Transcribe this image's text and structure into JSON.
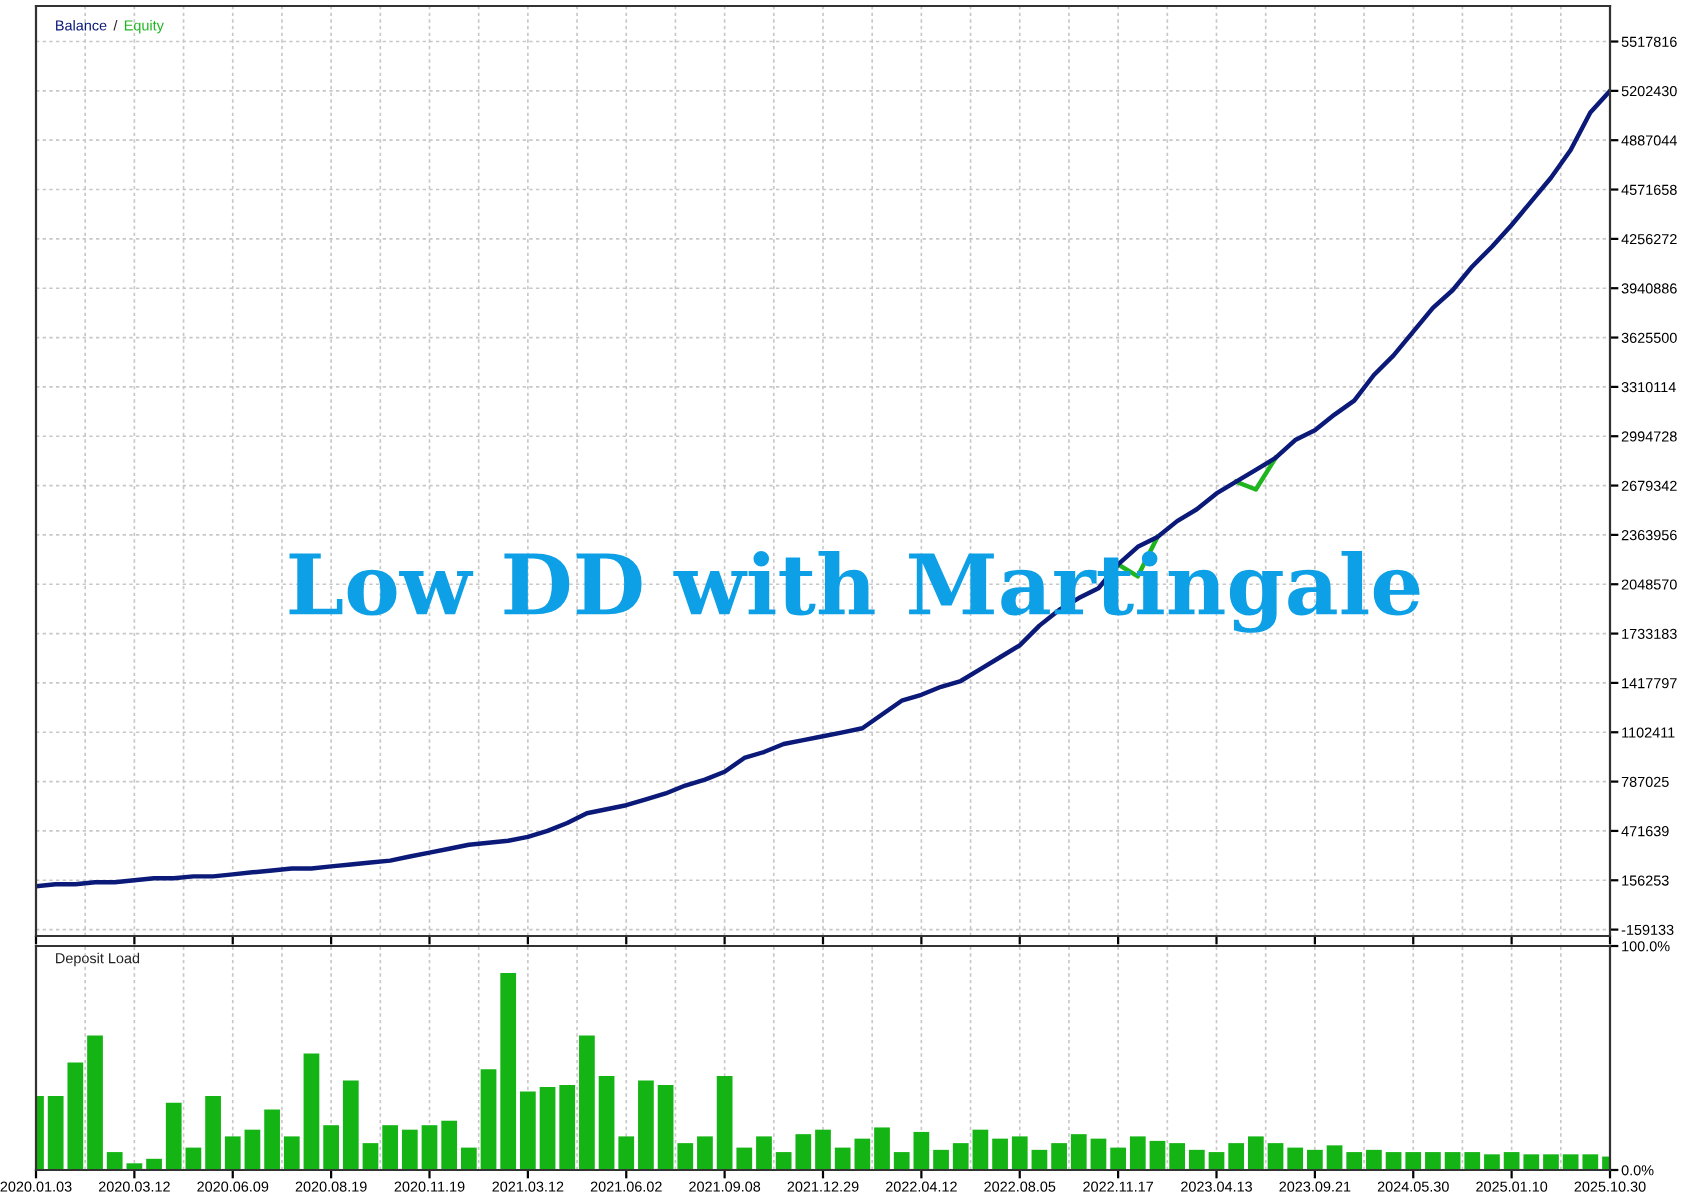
{
  "chart_data": [
    {
      "type": "line",
      "annotations": [
        "Low DD with Martingale",
        "/"
      ],
      "categories": [
        "2020.01.03",
        null,
        null,
        null,
        null,
        "2020.03.12",
        null,
        null,
        null,
        null,
        "2020.06.09",
        null,
        null,
        null,
        null,
        "2020.08.19",
        null,
        null,
        null,
        null,
        "2020.11.19",
        null,
        null,
        null,
        null,
        "2021.03.12",
        null,
        null,
        null,
        null,
        "2021.06.02",
        null,
        null,
        null,
        null,
        "2021.09.08",
        null,
        null,
        null,
        null,
        "2021.12.29",
        null,
        null,
        null,
        null,
        "2022.04.12",
        null,
        null,
        null,
        null,
        "2022.08.05",
        null,
        null,
        null,
        null,
        "2022.11.17",
        null,
        null,
        null,
        null,
        "2023.04.13",
        null,
        null,
        null,
        null,
        "2023.09.21",
        null,
        null,
        null,
        null,
        "2024.05.30",
        null,
        null,
        null,
        null,
        "2025.01.10",
        null,
        null,
        null,
        null,
        "2025.10.30"
      ],
      "series": [
        {
          "name": "Equity",
          "color": "#1fb51f",
          "values": [
            null,
            null,
            null,
            null,
            null,
            null,
            null,
            null,
            null,
            null,
            null,
            null,
            null,
            null,
            null,
            null,
            null,
            null,
            null,
            null,
            null,
            null,
            null,
            null,
            null,
            null,
            null,
            null,
            null,
            null,
            null,
            null,
            null,
            null,
            null,
            null,
            null,
            null,
            null,
            null,
            null,
            null,
            null,
            null,
            null,
            null,
            null,
            null,
            null,
            null,
            null,
            null,
            null,
            null,
            null,
            2175000,
            2099000,
            2351000,
            null,
            null,
            null,
            2704000,
            2654000,
            2856000,
            null,
            null,
            null,
            null,
            null,
            null,
            null,
            null,
            null,
            null,
            null,
            null,
            null,
            null,
            null,
            null,
            null
          ]
        },
        {
          "name": "Balance",
          "color": "#0b1a78",
          "values": [
            118000,
            131000,
            131000,
            144000,
            144000,
            156000,
            169000,
            169000,
            181000,
            181000,
            194000,
            207000,
            219000,
            232000,
            232000,
            245000,
            257000,
            270000,
            282000,
            308000,
            333000,
            358000,
            383000,
            396000,
            409000,
            434000,
            472000,
            522000,
            585000,
            610000,
            636000,
            673000,
            711000,
            762000,
            800000,
            850000,
            938000,
            976000,
            1027000,
            1052000,
            1077000,
            1102000,
            1128000,
            1216000,
            1304000,
            1342000,
            1393000,
            1430000,
            1506000,
            1582000,
            1658000,
            1784000,
            1884000,
            1960000,
            2023000,
            2175000,
            2288000,
            2351000,
            2452000,
            2528000,
            2629000,
            2704000,
            2780000,
            2856000,
            2970000,
            3033000,
            3133000,
            3222000,
            3386000,
            3512000,
            3663000,
            3815000,
            3928000,
            4080000,
            4206000,
            4345000,
            4496000,
            4647000,
            4824000,
            5064000,
            5202000
          ]
        }
      ],
      "ylim": [
        -200000,
        5744894
      ],
      "yticks": [
        -159133,
        156253,
        471639,
        787025,
        1102411,
        1417797,
        1733183,
        2048570,
        2363956,
        2679342,
        2994728,
        3310114,
        3625500,
        3940886,
        4256272,
        4571658,
        4887044,
        5202430,
        5517816
      ],
      "grid": true,
      "tick_labels": "y"
    },
    {
      "type": "bar",
      "title": "Deposit Load",
      "color": "#14b414",
      "categories": [
        "2020.01.03",
        null,
        null,
        null,
        null,
        "2020.03.12",
        null,
        null,
        null,
        null,
        "2020.06.09",
        null,
        null,
        null,
        null,
        "2020.08.19",
        null,
        null,
        null,
        null,
        "2020.11.19",
        null,
        null,
        null,
        null,
        "2021.03.12",
        null,
        null,
        null,
        null,
        "2021.06.02",
        null,
        null,
        null,
        null,
        "2021.09.08",
        null,
        null,
        null,
        null,
        "2021.12.29",
        null,
        null,
        null,
        null,
        "2022.04.12",
        null,
        null,
        null,
        null,
        "2022.08.05",
        null,
        null,
        null,
        null,
        "2022.11.17",
        null,
        null,
        null,
        null,
        "2023.04.13",
        null,
        null,
        null,
        null,
        "2023.09.21",
        null,
        null,
        null,
        null,
        "2024.05.30",
        null,
        null,
        null,
        null,
        "2025.01.10",
        null,
        null,
        null,
        null,
        "2025.10.30"
      ],
      "values": [
        33,
        33,
        48,
        60,
        8,
        3,
        5,
        30,
        10,
        33,
        15,
        18,
        27,
        15,
        52,
        20,
        40,
        12,
        20,
        18,
        20,
        22,
        10,
        45,
        88,
        35,
        37,
        38,
        60,
        42,
        15,
        40,
        38,
        12,
        15,
        42,
        10,
        15,
        8,
        16,
        18,
        10,
        14,
        19,
        8,
        17,
        9,
        12,
        18,
        14,
        15,
        9,
        12,
        16,
        14,
        10,
        15,
        13,
        12,
        9,
        8,
        12,
        15,
        12,
        10,
        9,
        11,
        8,
        9,
        8,
        8,
        8,
        8,
        8,
        7,
        8,
        7,
        7,
        7,
        7,
        6
      ],
      "ylim": [
        0,
        100
      ],
      "yticks": [
        {
          "value": 0,
          "label": "0.0%"
        },
        {
          "value": 100,
          "label": "100.0%"
        }
      ],
      "grid": true
    }
  ]
}
